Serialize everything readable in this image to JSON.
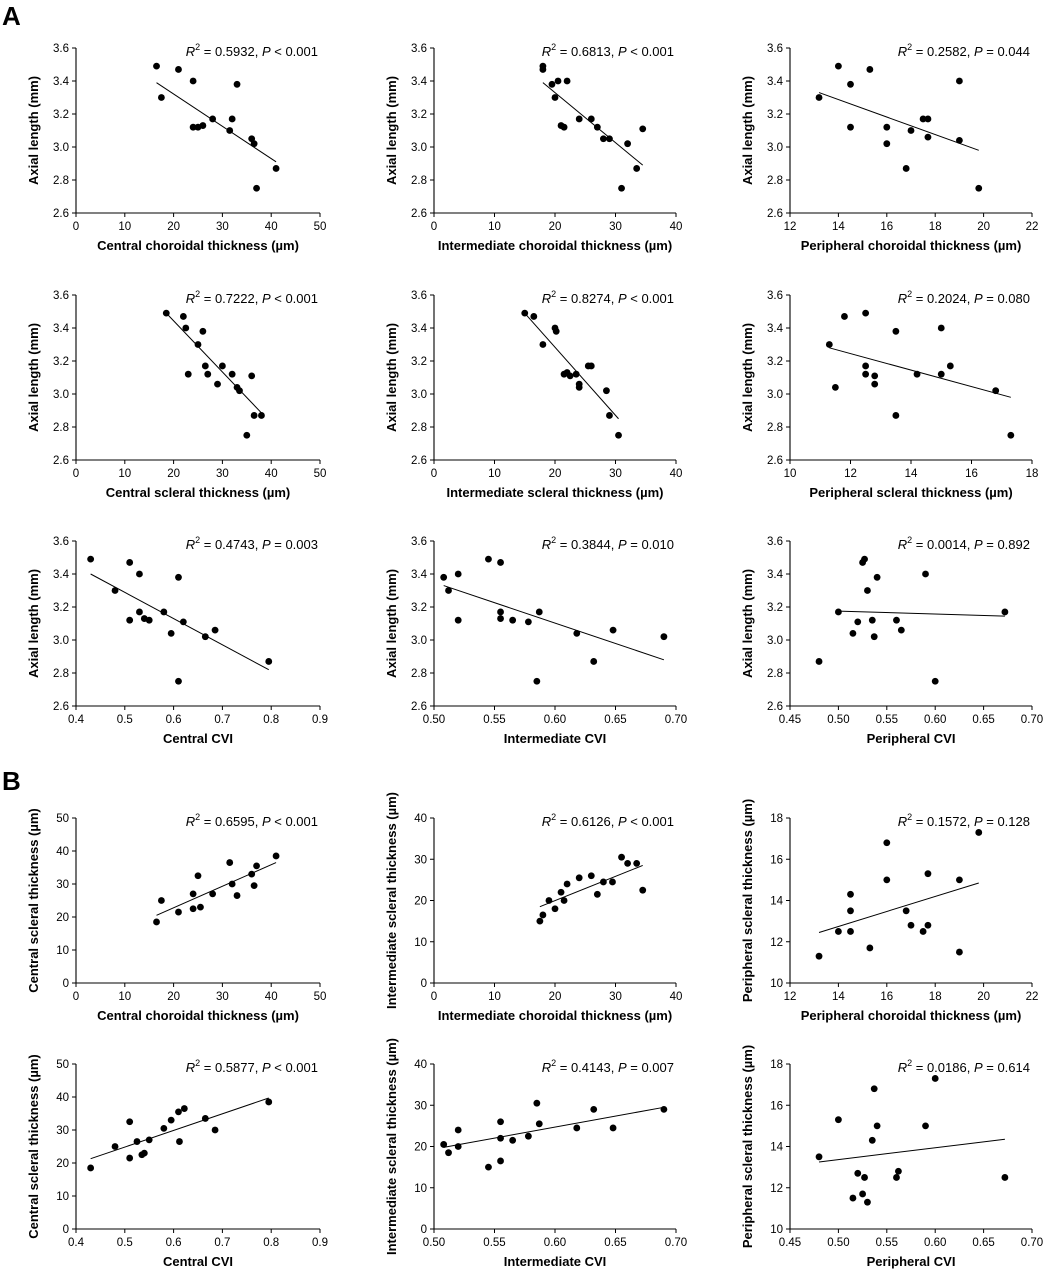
{
  "figure": {
    "panel_labels": [
      "A",
      "B"
    ]
  },
  "chart_data": [
    {
      "id": "A1",
      "type": "scatter",
      "x": [
        16.5,
        17.5,
        21,
        24,
        24,
        25,
        26,
        28,
        31.5,
        32,
        33,
        36,
        36.5,
        37,
        41
      ],
      "y": [
        3.49,
        3.3,
        3.47,
        3.4,
        3.12,
        3.12,
        3.13,
        3.17,
        3.1,
        3.17,
        3.38,
        3.05,
        3.02,
        2.75,
        2.87
      ],
      "fit": {
        "x": [
          16.5,
          41
        ],
        "y": [
          3.39,
          2.91
        ]
      },
      "xlim": [
        0,
        50
      ],
      "xticks": [
        0,
        10,
        20,
        30,
        40,
        50
      ],
      "ylim": [
        2.6,
        3.6
      ],
      "yticks": [
        "2.6",
        "2.8",
        "3.0",
        "3.2",
        "3.4",
        "3.6"
      ],
      "xlabel": "Central choroidal thickness (µm)",
      "ylabel": "Axial length (mm)",
      "stats": {
        "r2": "0.5932",
        "p_op": "<",
        "p": "0.001"
      }
    },
    {
      "id": "A2",
      "type": "scatter",
      "x": [
        18,
        18,
        19.5,
        20,
        20.5,
        21,
        21.5,
        22,
        24,
        26,
        27,
        28,
        29,
        31,
        32,
        33.5,
        34.5
      ],
      "y": [
        3.49,
        3.47,
        3.38,
        3.3,
        3.4,
        3.13,
        3.12,
        3.4,
        3.17,
        3.17,
        3.12,
        3.05,
        3.05,
        2.75,
        3.02,
        2.87,
        3.11
      ],
      "fit": {
        "x": [
          18,
          34.5
        ],
        "y": [
          3.39,
          2.89
        ]
      },
      "xlim": [
        0,
        40
      ],
      "xticks": [
        0,
        10,
        20,
        30,
        40
      ],
      "ylim": [
        2.6,
        3.6
      ],
      "yticks": [
        "2.6",
        "2.8",
        "3.0",
        "3.2",
        "3.4",
        "3.6"
      ],
      "xlabel": "Intermediate choroidal thickness (µm)",
      "ylabel": "Axial length (mm)",
      "stats": {
        "r2": "0.6813",
        "p_op": "<",
        "p": "0.001"
      }
    },
    {
      "id": "A3",
      "type": "scatter",
      "x": [
        13.2,
        14,
        14.5,
        14.5,
        15.3,
        16,
        16,
        16.8,
        17,
        17.5,
        17.7,
        17.7,
        19,
        19,
        19.8
      ],
      "y": [
        3.3,
        3.49,
        3.38,
        3.12,
        3.47,
        3.12,
        3.02,
        2.87,
        3.1,
        3.17,
        3.17,
        3.06,
        3.4,
        3.04,
        2.75
      ],
      "fit": {
        "x": [
          13.2,
          19.8
        ],
        "y": [
          3.33,
          2.98
        ]
      },
      "xlim": [
        12,
        22
      ],
      "xticks": [
        12,
        14,
        16,
        18,
        20,
        22
      ],
      "ylim": [
        2.6,
        3.6
      ],
      "yticks": [
        "2.6",
        "2.8",
        "3.0",
        "3.2",
        "3.4",
        "3.6"
      ],
      "xlabel": "Peripheral choroidal thickness (µm)",
      "ylabel": "Axial length (mm)",
      "stats": {
        "r2": "0.2582",
        "p_op": "=",
        "p": "0.044"
      }
    },
    {
      "id": "A4",
      "type": "scatter",
      "x": [
        18.5,
        22,
        22.5,
        23,
        25,
        26,
        26.5,
        27,
        29,
        30,
        32,
        33,
        33.5,
        36,
        36.5,
        38,
        35
      ],
      "y": [
        3.49,
        3.47,
        3.4,
        3.12,
        3.3,
        3.38,
        3.17,
        3.12,
        3.06,
        3.17,
        3.12,
        3.04,
        3.02,
        3.11,
        2.87,
        2.87,
        2.75
      ],
      "fit": {
        "x": [
          18.5,
          38.5
        ],
        "y": [
          3.49,
          2.87
        ]
      },
      "xlim": [
        0,
        50
      ],
      "xticks": [
        0,
        10,
        20,
        30,
        40,
        50
      ],
      "ylim": [
        2.6,
        3.6
      ],
      "yticks": [
        "2.6",
        "2.8",
        "3.0",
        "3.2",
        "3.4",
        "3.6"
      ],
      "xlabel": "Central scleral thickness (µm)",
      "ylabel": "Axial length (mm)",
      "stats": {
        "r2": "0.7222",
        "p_op": "<",
        "p": "0.001"
      }
    },
    {
      "id": "A5",
      "type": "scatter",
      "x": [
        15,
        16.5,
        18,
        20,
        20.2,
        21.5,
        22,
        22.5,
        23.5,
        24,
        24,
        25.5,
        26,
        28.5,
        29,
        30.5
      ],
      "y": [
        3.49,
        3.47,
        3.3,
        3.4,
        3.38,
        3.12,
        3.13,
        3.11,
        3.12,
        3.06,
        3.04,
        3.17,
        3.17,
        3.02,
        2.87,
        2.75
      ],
      "fit": {
        "x": [
          15,
          30.5
        ],
        "y": [
          3.49,
          2.85
        ]
      },
      "xlim": [
        0,
        40
      ],
      "xticks": [
        0,
        10,
        20,
        30,
        40
      ],
      "ylim": [
        2.6,
        3.6
      ],
      "yticks": [
        "2.6",
        "2.8",
        "3.0",
        "3.2",
        "3.4",
        "3.6"
      ],
      "xlabel": "Intermediate scleral thickness (µm)",
      "ylabel": "Axial length (mm)",
      "stats": {
        "r2": "0.8274",
        "p_op": "<",
        "p": "0.001"
      }
    },
    {
      "id": "A6",
      "type": "scatter",
      "x": [
        11.3,
        11.5,
        11.8,
        12.5,
        12.5,
        12.5,
        12.8,
        12.8,
        13.5,
        13.5,
        14.2,
        15,
        15,
        15.3,
        16.8,
        17.3
      ],
      "y": [
        3.3,
        3.04,
        3.47,
        3.49,
        3.17,
        3.12,
        3.11,
        3.06,
        3.38,
        2.87,
        3.12,
        3.4,
        3.12,
        3.17,
        3.02,
        2.75
      ],
      "fit": {
        "x": [
          11.3,
          17.3
        ],
        "y": [
          3.28,
          2.98
        ]
      },
      "xlim": [
        10,
        18
      ],
      "xticks": [
        10,
        12,
        14,
        16,
        18
      ],
      "ylim": [
        2.6,
        3.6
      ],
      "yticks": [
        "2.6",
        "2.8",
        "3.0",
        "3.2",
        "3.4",
        "3.6"
      ],
      "xlabel": "Peripheral scleral thickness (µm)",
      "ylabel": "Axial length (mm)",
      "stats": {
        "r2": "0.2024",
        "p_op": "=",
        "p": "0.080"
      }
    },
    {
      "id": "A7",
      "type": "scatter",
      "x": [
        0.43,
        0.48,
        0.51,
        0.51,
        0.53,
        0.53,
        0.54,
        0.55,
        0.58,
        0.595,
        0.61,
        0.62,
        0.665,
        0.685,
        0.795,
        0.61
      ],
      "y": [
        3.49,
        3.3,
        3.47,
        3.12,
        3.4,
        3.17,
        3.13,
        3.12,
        3.17,
        3.04,
        3.38,
        3.11,
        3.02,
        3.06,
        2.87,
        2.75
      ],
      "fit": {
        "x": [
          0.43,
          0.795
        ],
        "y": [
          3.4,
          2.82
        ]
      },
      "xlim": [
        0.4,
        0.9
      ],
      "xticks": [
        "0.4",
        "0.5",
        "0.6",
        "0.7",
        "0.8",
        "0.9"
      ],
      "ylim": [
        2.6,
        3.6
      ],
      "yticks": [
        "2.6",
        "2.8",
        "3.0",
        "3.2",
        "3.4",
        "3.6"
      ],
      "xlabel": "Central CVI",
      "ylabel": "Axial length (mm)",
      "stats": {
        "r2": "0.4743",
        "p_op": "=",
        "p": "0.003"
      }
    },
    {
      "id": "A8",
      "type": "scatter",
      "x": [
        0.508,
        0.512,
        0.52,
        0.52,
        0.545,
        0.555,
        0.555,
        0.555,
        0.565,
        0.578,
        0.587,
        0.585,
        0.618,
        0.632,
        0.648,
        0.69
      ],
      "y": [
        3.38,
        3.3,
        3.4,
        3.12,
        3.49,
        3.47,
        3.17,
        3.13,
        3.12,
        3.11,
        3.17,
        2.75,
        3.04,
        2.87,
        3.06,
        3.02
      ],
      "fit": {
        "x": [
          0.508,
          0.69
        ],
        "y": [
          3.33,
          2.88
        ]
      },
      "xlim": [
        0.5,
        0.7
      ],
      "xticks": [
        "0.50",
        "0.55",
        "0.60",
        "0.65",
        "0.70"
      ],
      "ylim": [
        2.6,
        3.6
      ],
      "yticks": [
        "2.6",
        "2.8",
        "3.0",
        "3.2",
        "3.4",
        "3.6"
      ],
      "xlabel": "Intermediate CVI",
      "ylabel": "Axial length (mm)",
      "stats": {
        "r2": "0.3844",
        "p_op": "=",
        "p": "0.010"
      }
    },
    {
      "id": "A9",
      "type": "scatter",
      "x": [
        0.48,
        0.5,
        0.515,
        0.52,
        0.525,
        0.527,
        0.53,
        0.535,
        0.537,
        0.54,
        0.56,
        0.565,
        0.59,
        0.6,
        0.672
      ],
      "y": [
        2.87,
        3.17,
        3.04,
        3.11,
        3.47,
        3.49,
        3.3,
        3.12,
        3.02,
        3.38,
        3.12,
        3.06,
        3.4,
        2.75,
        3.17
      ],
      "fit": {
        "x": [
          0.5,
          0.672
        ],
        "y": [
          3.175,
          3.145
        ]
      },
      "xlim": [
        0.45,
        0.7
      ],
      "xticks": [
        "0.45",
        "0.50",
        "0.55",
        "0.60",
        "0.65",
        "0.70"
      ],
      "ylim": [
        2.6,
        3.6
      ],
      "yticks": [
        "2.6",
        "2.8",
        "3.0",
        "3.2",
        "3.4",
        "3.6"
      ],
      "xlabel": "Peripheral CVI",
      "ylabel": "Axial length (mm)",
      "stats": {
        "r2": "0.0014",
        "p_op": "=",
        "p": "0.892"
      }
    },
    {
      "id": "B1",
      "type": "scatter",
      "x": [
        16.5,
        17.5,
        21,
        24,
        24,
        25,
        25.5,
        28,
        31.5,
        32,
        33,
        36,
        36.5,
        37,
        41
      ],
      "y": [
        18.5,
        25,
        21.5,
        27,
        22.5,
        32.5,
        23,
        27,
        36.5,
        30,
        26.5,
        33,
        29.5,
        35.5,
        38.5
      ],
      "fit": {
        "x": [
          16.5,
          41
        ],
        "y": [
          20.5,
          36.5
        ]
      },
      "xlim": [
        0,
        50
      ],
      "xticks": [
        0,
        10,
        20,
        30,
        40,
        50
      ],
      "ylim": [
        0,
        50
      ],
      "yticks": [
        "0",
        "10",
        "20",
        "30",
        "40",
        "50"
      ],
      "xlabel": "Central choroidal thickness (µm)",
      "ylabel": "Central scleral thickness (µm)",
      "stats": {
        "r2": "0.6595",
        "p_op": "<",
        "p": "0.001"
      }
    },
    {
      "id": "B2",
      "type": "scatter",
      "x": [
        17.5,
        18,
        19,
        20,
        21,
        21.5,
        22,
        24,
        26,
        27,
        28,
        29.5,
        31,
        32,
        33.5,
        34.5
      ],
      "y": [
        15,
        16.5,
        20,
        18,
        22,
        20,
        24,
        25.5,
        26,
        21.5,
        24.5,
        24.5,
        30.5,
        29,
        29,
        22.5
      ],
      "fit": {
        "x": [
          17.5,
          34.5
        ],
        "y": [
          18.5,
          28.5
        ]
      },
      "xlim": [
        0,
        40
      ],
      "xticks": [
        0,
        10,
        20,
        30,
        40
      ],
      "ylim": [
        0,
        40
      ],
      "yticks": [
        "0",
        "10",
        "20",
        "30",
        "40"
      ],
      "xlabel": "Intermediate choroidal thickness (µm)",
      "ylabel": "Intermediate scleral thickness (µm)",
      "stats": {
        "r2": "0.6126",
        "p_op": "<",
        "p": "0.001"
      }
    },
    {
      "id": "B3",
      "type": "scatter",
      "x": [
        13.2,
        14,
        14.5,
        14.5,
        14.5,
        15.3,
        16,
        16,
        16.8,
        17,
        17.5,
        17.7,
        17.7,
        19,
        19,
        19.8
      ],
      "y": [
        11.3,
        12.5,
        14.3,
        13.5,
        12.5,
        11.7,
        16.8,
        15,
        13.5,
        12.8,
        12.5,
        15.3,
        12.8,
        15,
        11.5,
        17.3
      ],
      "fit": {
        "x": [
          13.2,
          19.8
        ],
        "y": [
          12.45,
          14.85
        ]
      },
      "xlim": [
        12,
        22
      ],
      "xticks": [
        12,
        14,
        16,
        18,
        20,
        22
      ],
      "ylim": [
        10,
        18
      ],
      "yticks": [
        "10",
        "12",
        "14",
        "16",
        "18"
      ],
      "xlabel": "Peripheral choroidal thickness (µm)",
      "ylabel": "Peripheral scleral thickness (µm)",
      "stats": {
        "r2": "0.1572",
        "p_op": "=",
        "p": "0.128"
      }
    },
    {
      "id": "B4",
      "type": "scatter",
      "x": [
        0.43,
        0.48,
        0.51,
        0.51,
        0.525,
        0.535,
        0.54,
        0.55,
        0.58,
        0.595,
        0.61,
        0.612,
        0.622,
        0.665,
        0.685,
        0.795
      ],
      "y": [
        18.5,
        25,
        32.5,
        21.5,
        26.5,
        22.5,
        23,
        27,
        30.5,
        33,
        35.5,
        26.5,
        36.5,
        33.5,
        30,
        38.5
      ],
      "fit": {
        "x": [
          0.43,
          0.795
        ],
        "y": [
          21.3,
          39.7
        ]
      },
      "xlim": [
        0.4,
        0.9
      ],
      "xticks": [
        "0.4",
        "0.5",
        "0.6",
        "0.7",
        "0.8",
        "0.9"
      ],
      "ylim": [
        0,
        50
      ],
      "yticks": [
        "0",
        "10",
        "20",
        "30",
        "40",
        "50"
      ],
      "xlabel": "Central CVI",
      "ylabel": "Central scleral thickness (µm)",
      "stats": {
        "r2": "0.5877",
        "p_op": "<",
        "p": "0.001"
      }
    },
    {
      "id": "B5",
      "type": "scatter",
      "x": [
        0.508,
        0.512,
        0.52,
        0.52,
        0.545,
        0.555,
        0.555,
        0.555,
        0.565,
        0.578,
        0.585,
        0.587,
        0.618,
        0.632,
        0.648,
        0.69
      ],
      "y": [
        20.5,
        18.5,
        24,
        20,
        15,
        26,
        22,
        16.5,
        21.5,
        22.5,
        30.5,
        25.5,
        24.5,
        29,
        24.5,
        29
      ],
      "fit": {
        "x": [
          0.508,
          0.69
        ],
        "y": [
          19.8,
          29.5
        ]
      },
      "xlim": [
        0.5,
        0.7
      ],
      "xticks": [
        "0.50",
        "0.55",
        "0.60",
        "0.65",
        "0.70"
      ],
      "ylim": [
        0,
        40
      ],
      "yticks": [
        "0",
        "10",
        "20",
        "30",
        "40"
      ],
      "xlabel": "Intermediate CVI",
      "ylabel": "Intermediate scleral thickness (µm)",
      "stats": {
        "r2": "0.4143",
        "p_op": "=",
        "p": "0.007"
      }
    },
    {
      "id": "B6",
      "type": "scatter",
      "x": [
        0.48,
        0.5,
        0.515,
        0.52,
        0.525,
        0.527,
        0.53,
        0.535,
        0.537,
        0.54,
        0.56,
        0.562,
        0.59,
        0.6,
        0.672
      ],
      "y": [
        13.5,
        15.3,
        11.5,
        12.7,
        11.7,
        12.5,
        11.3,
        14.3,
        16.8,
        15,
        12.5,
        12.8,
        15,
        17.3,
        12.5
      ],
      "fit": {
        "x": [
          0.48,
          0.672
        ],
        "y": [
          13.25,
          14.35
        ]
      },
      "xlim": [
        0.45,
        0.7
      ],
      "xticks": [
        "0.45",
        "0.50",
        "0.55",
        "0.60",
        "0.65",
        "0.70"
      ],
      "ylim": [
        10,
        18
      ],
      "yticks": [
        "10",
        "12",
        "14",
        "16",
        "18"
      ],
      "xlabel": "Peripheral CVI",
      "ylabel": "Peripheral scleral thickness (µm)",
      "stats": {
        "r2": "0.0186",
        "p_op": "=",
        "p": "0.614"
      }
    }
  ]
}
